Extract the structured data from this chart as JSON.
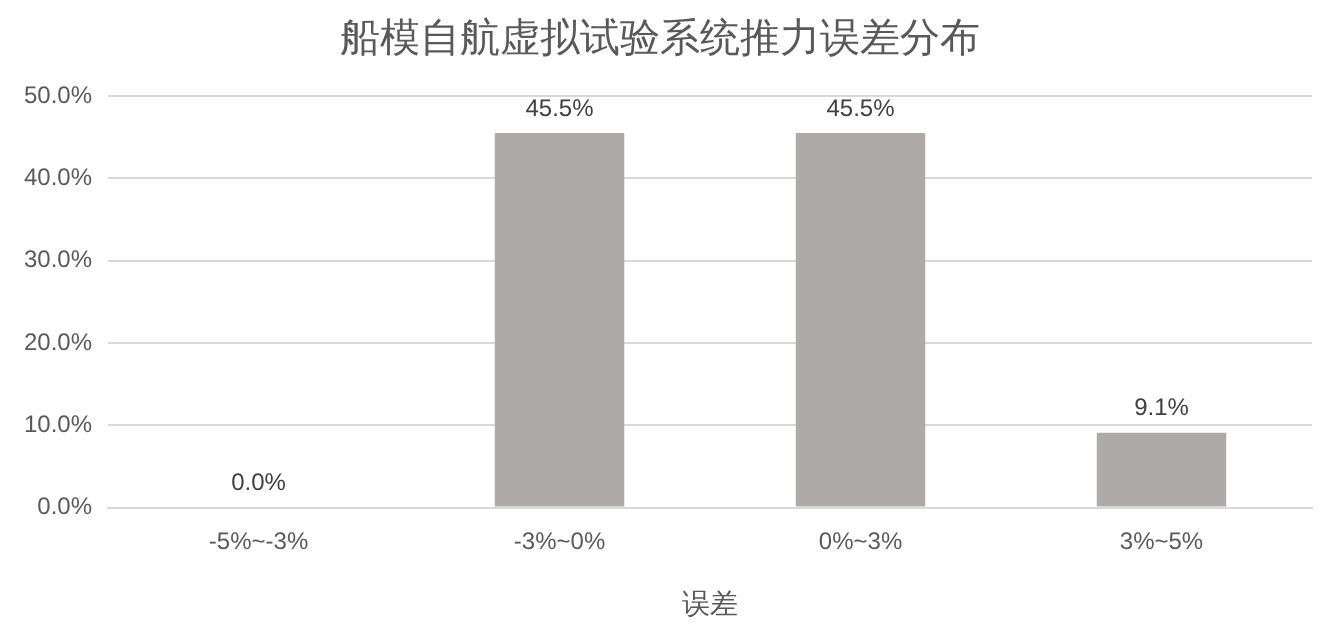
{
  "chart_data": {
    "type": "bar",
    "title": "船模自航虚拟试验系统推力误差分布",
    "xlabel": "误差",
    "categories": [
      "-5%~-3%",
      "-3%~0%",
      "0%~3%",
      "3%~5%"
    ],
    "values": [
      0,
      45.5,
      45.5,
      9.1
    ],
    "color": "#aeaaaa",
    "value_labels": [
      "0.0%",
      "45.5%",
      "45.5%",
      "9.1%"
    ],
    "ylim": [
      0,
      50
    ],
    "yticks": [
      {
        "value": 0,
        "label": "0.0%"
      },
      {
        "value": 10,
        "label": "10.0%"
      },
      {
        "value": 20,
        "label": "20.0%"
      },
      {
        "value": 30,
        "label": "30.0%"
      },
      {
        "value": 40,
        "label": "40.0%"
      },
      {
        "value": 50,
        "label": "50.0%"
      }
    ],
    "grid": "y",
    "legend": false
  }
}
